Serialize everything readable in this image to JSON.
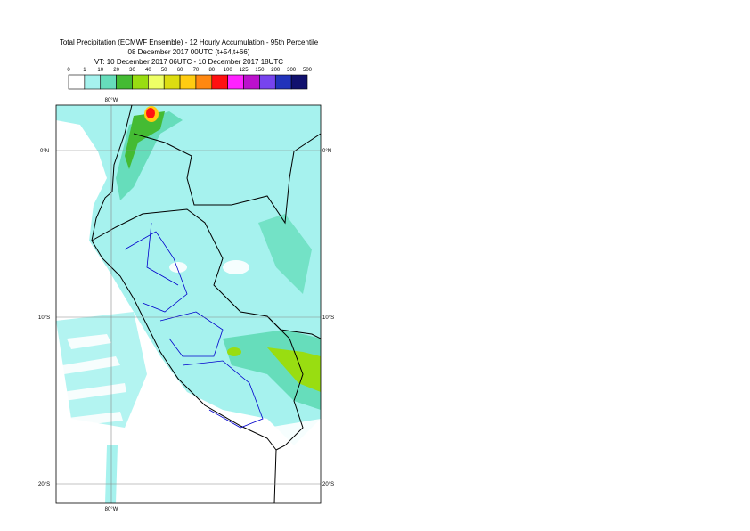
{
  "header": {
    "lines": [
      "Total Precipitation (ECMWF Ensemble) - 12 Hourly Accumulation - 95th Percentile",
      "08 December 2017 00UTC (t+54,t+66)",
      "VT: 10 December 2017 06UTC - 10 December 2017 18UTC"
    ]
  },
  "legend": {
    "labels": [
      "0",
      "1",
      "10",
      "20",
      "30",
      "40",
      "50",
      "60",
      "70",
      "80",
      "100",
      "125",
      "150",
      "200",
      "300",
      "500"
    ],
    "colors": [
      "#ffffff",
      "#a6f2ee",
      "#66ddbb",
      "#44bb33",
      "#99dd11",
      "#eeff66",
      "#dddd11",
      "#ffcc11",
      "#ff8811",
      "#ff1111",
      "#ff22ff",
      "#bb11cc",
      "#7744ee",
      "#2233bb",
      "#11116e"
    ]
  },
  "map": {
    "lon_labels": [
      "80°W"
    ],
    "lat_labels": [
      "0°N",
      "10°S",
      "20°S"
    ]
  }
}
